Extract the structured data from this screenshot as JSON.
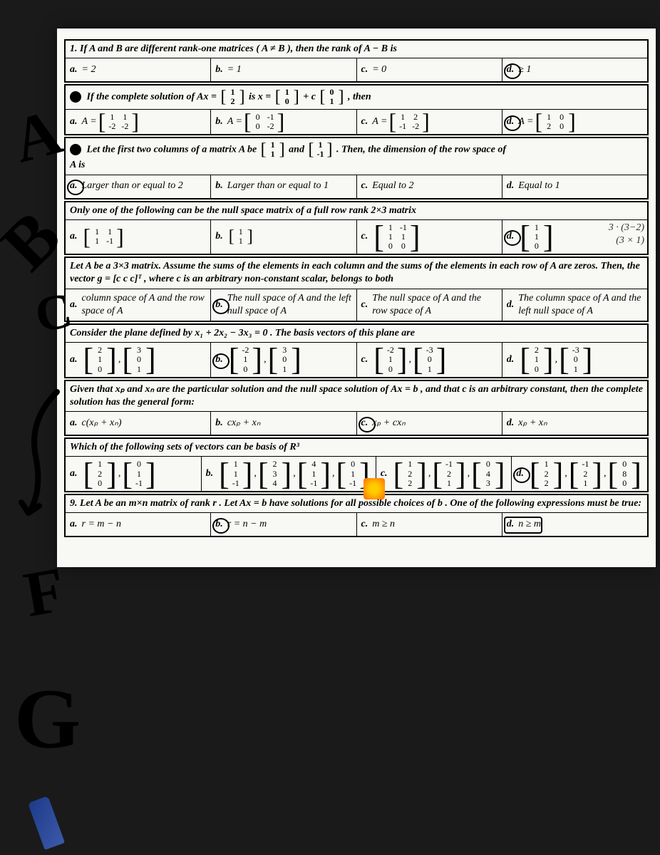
{
  "q1": {
    "text": "1. If A and B are different rank-one matrices ( A ≠ B ), then the rank of A − B is",
    "a": "= 2",
    "b": "= 1",
    "c": "= 0",
    "d": "≥ 1",
    "answer": "d"
  },
  "q2": {
    "prefix": "If the complete solution of Ax =",
    "mid": "is x =",
    "suffix": ", then",
    "m1": [
      [
        "1"
      ],
      [
        "2"
      ]
    ],
    "m2": [
      [
        "1"
      ],
      [
        "0"
      ]
    ],
    "m3": [
      [
        "0"
      ],
      [
        "1"
      ]
    ],
    "a_m": [
      [
        "1",
        "1"
      ],
      [
        "-2",
        "-2"
      ]
    ],
    "b_m": [
      [
        "0",
        "-1"
      ],
      [
        "0",
        "-2"
      ]
    ],
    "c_m": [
      [
        "1",
        "2"
      ],
      [
        "-1",
        "-2"
      ]
    ],
    "d_m": [
      [
        "1",
        "0"
      ],
      [
        "2",
        "0"
      ]
    ],
    "answer": "d"
  },
  "q3": {
    "prefix": "Let the first two columns of a matrix A be",
    "mid": "and",
    "suffix": ". Then, the dimension of the row space of",
    "suffix2": "A is",
    "m1": [
      [
        "1"
      ],
      [
        "1"
      ]
    ],
    "m2": [
      [
        "1"
      ],
      [
        "-1"
      ]
    ],
    "a": "Larger than or equal to 2",
    "b": "Larger than or equal to 1",
    "c": "Equal to 2",
    "d": "Equal to 1",
    "answer": "a"
  },
  "q4": {
    "text": "Only one of the following can be the null space matrix of a full row rank 2×3 matrix",
    "a_m": [
      [
        "1",
        "1"
      ],
      [
        "1",
        "-1"
      ]
    ],
    "b_m": [
      [
        "1"
      ],
      [
        "1"
      ]
    ],
    "c_m": [
      [
        "1",
        "-1"
      ],
      [
        "1",
        "1"
      ],
      [
        "0",
        "0"
      ]
    ],
    "d_m": [
      [
        "1"
      ],
      [
        "1"
      ],
      [
        "0"
      ]
    ],
    "note1": "3 · (3−2)",
    "note2": "(3 × 1)",
    "answer": "d"
  },
  "q5": {
    "text": "Let A be a 3×3 matrix. Assume the sums of the elements in each column and the sums of the elements in each row of A are zeros. Then, the vector g = [c  c  c]ᵀ , where c is an arbitrary non-constant scalar, belongs to both",
    "a": "column space of A and the row space of A",
    "b": "The null space of A and the left null space of A",
    "c": "The null space of A and the row space of A",
    "d": "The column space of A and the left null space of A",
    "answer": "b"
  },
  "q6": {
    "text": "Consider the plane defined by x₁ + 2x₂ − 3x₃ = 0 . The basis vectors of this plane are",
    "a_m1": [
      [
        "2"
      ],
      [
        "1"
      ],
      [
        "0"
      ]
    ],
    "a_m2": [
      [
        "3"
      ],
      [
        "0"
      ],
      [
        "1"
      ]
    ],
    "b_m1": [
      [
        "-2"
      ],
      [
        "1"
      ],
      [
        "0"
      ]
    ],
    "b_m2": [
      [
        "3"
      ],
      [
        "0"
      ],
      [
        "1"
      ]
    ],
    "c_m1": [
      [
        "-2"
      ],
      [
        "1"
      ],
      [
        "0"
      ]
    ],
    "c_m2": [
      [
        "-3"
      ],
      [
        "0"
      ],
      [
        "1"
      ]
    ],
    "d_m1": [
      [
        "2"
      ],
      [
        "1"
      ],
      [
        "0"
      ]
    ],
    "d_m2": [
      [
        "-3"
      ],
      [
        "0"
      ],
      [
        "1"
      ]
    ],
    "answer": "b"
  },
  "q7": {
    "text": "Given that xₚ and xₙ are the particular solution and the null space solution of Ax = b , and that c is an arbitrary constant, then the complete solution has the general form:",
    "a": "c(xₚ + xₙ)",
    "b": "cxₚ + xₙ",
    "c": "xₚ + cxₙ",
    "d": "xₚ + xₙ",
    "answer": "c"
  },
  "q8": {
    "text": "Which of the following sets of vectors can be basis of R³",
    "a_m1": [
      [
        "1"
      ],
      [
        "2"
      ],
      [
        "0"
      ]
    ],
    "a_m2": [
      [
        "0"
      ],
      [
        "1"
      ],
      [
        "-1"
      ]
    ],
    "b_m1": [
      [
        "1"
      ],
      [
        "1"
      ],
      [
        "-1"
      ]
    ],
    "b_m2": [
      [
        "2"
      ],
      [
        "3"
      ],
      [
        "4"
      ]
    ],
    "b_m3": [
      [
        "4"
      ],
      [
        "1"
      ],
      [
        "-1"
      ]
    ],
    "b_m4": [
      [
        "0"
      ],
      [
        "1"
      ],
      [
        "-1"
      ]
    ],
    "c_m1": [
      [
        "1"
      ],
      [
        "2"
      ],
      [
        "2"
      ]
    ],
    "c_m2": [
      [
        "-1"
      ],
      [
        "2"
      ],
      [
        "1"
      ]
    ],
    "c_m3": [
      [
        "0"
      ],
      [
        "4"
      ],
      [
        "3"
      ]
    ],
    "d_m1": [
      [
        "1"
      ],
      [
        "2"
      ],
      [
        "2"
      ]
    ],
    "d_m2": [
      [
        "-1"
      ],
      [
        "2"
      ],
      [
        "1"
      ]
    ],
    "d_m3": [
      [
        "0"
      ],
      [
        "8"
      ],
      [
        "0"
      ]
    ],
    "answer": "d"
  },
  "q9": {
    "text": "9. Let A be an m×n matrix of rank r . Let Ax = b have solutions for all possible choices of b . One of the following expressions must be true:",
    "a": "r = m − n",
    "b": "r = n − m",
    "c": "m ≥ n",
    "d": "n ≥ m",
    "answer": "d"
  },
  "letters": {
    "a": "a.",
    "b": "b.",
    "c": "c.",
    "d": "d."
  },
  "eq": {
    "A": "A =",
    "plus_c": "+ c"
  }
}
